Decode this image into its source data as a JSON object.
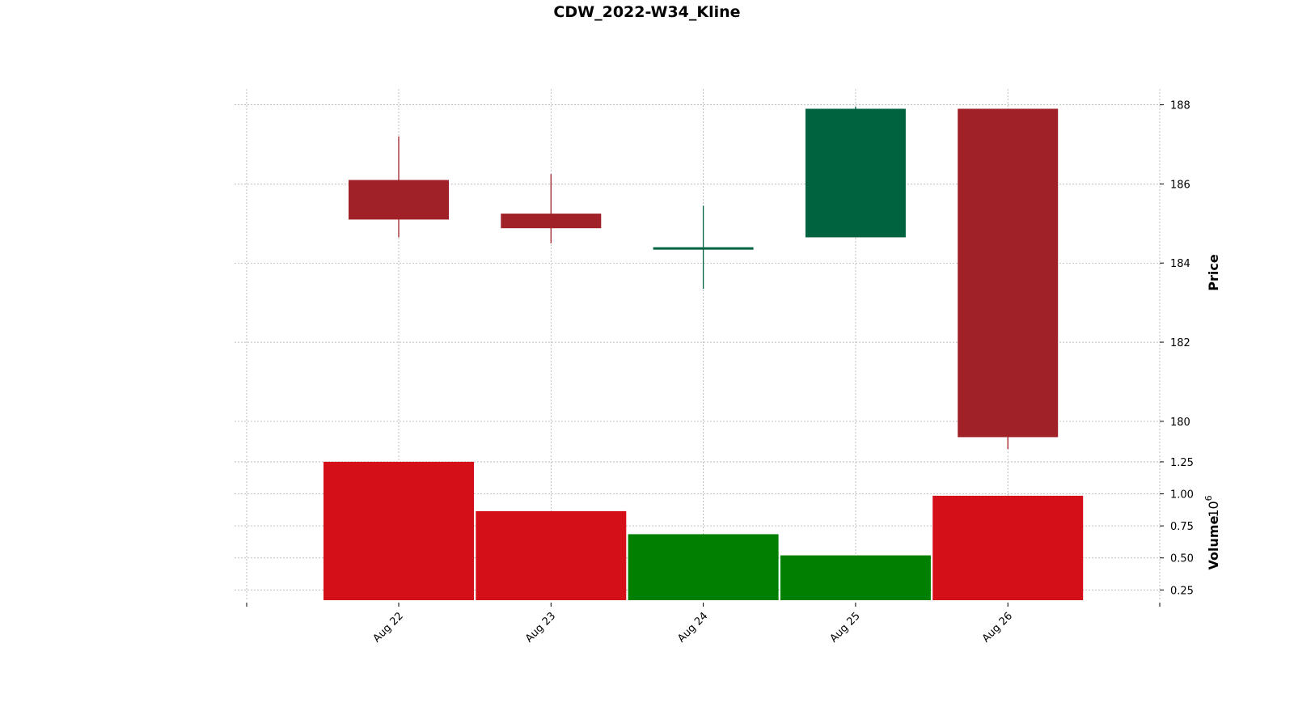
{
  "chart_data": {
    "type": "candlestick",
    "title": "CDW_2022-W34_Kline",
    "categories": [
      "Aug 22",
      "Aug 23",
      "Aug 24",
      "Aug 25",
      "Aug 26"
    ],
    "ohlc": [
      {
        "open": 186.1,
        "high": 187.2,
        "low": 184.65,
        "close": 185.1
      },
      {
        "open": 185.25,
        "high": 186.25,
        "low": 184.5,
        "close": 184.88
      },
      {
        "open": 184.38,
        "high": 185.45,
        "low": 183.35,
        "close": 184.4
      },
      {
        "open": 184.65,
        "high": 187.95,
        "low": 184.65,
        "close": 187.9
      },
      {
        "open": 187.9,
        "high": 187.9,
        "low": 179.3,
        "close": 179.6
      }
    ],
    "volume": [
      1250000,
      865000,
      685000,
      520000,
      985000
    ],
    "price_axis": {
      "label": "Price",
      "ylim": [
        179.2,
        188.4
      ],
      "ticks": [
        180,
        182,
        184,
        186,
        188
      ]
    },
    "volume_axis": {
      "label": "Volume",
      "multiplier_label": "10",
      "multiplier_exp": "6",
      "ylim": [
        0.17,
        1.3
      ],
      "ticks": [
        "0.25",
        "0.50",
        "0.75",
        "1.00",
        "1.25"
      ],
      "tick_values": [
        0.25,
        0.5,
        0.75,
        1.0,
        1.25
      ]
    },
    "grid": true,
    "colors": {
      "up": "#006340",
      "down": "#a02128",
      "volume_up": "#007f00",
      "volume_down": "#d50f18",
      "grid": "#b0b0b0"
    }
  }
}
